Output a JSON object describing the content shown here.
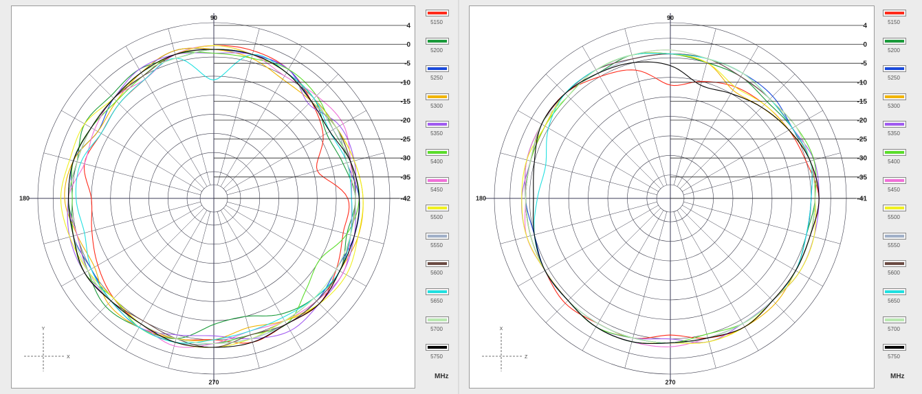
{
  "chart_data": [
    {
      "type": "polar-line",
      "angle_labels": [
        "90",
        "180",
        "270"
      ],
      "radial_labels": [
        {
          "value": 4,
          "label": "4"
        },
        {
          "value": 0,
          "label": "0"
        },
        {
          "value": -5,
          "label": "-5"
        },
        {
          "value": -10,
          "label": "-10"
        },
        {
          "value": -15,
          "label": "-15"
        },
        {
          "value": -20,
          "label": "-20"
        },
        {
          "value": -25,
          "label": "-25"
        },
        {
          "value": -30,
          "label": "-30"
        },
        {
          "value": -35,
          "label": "-35"
        },
        {
          "value": -42,
          "label": "-42"
        }
      ],
      "rlim": [
        -42,
        4
      ],
      "axis_indicator": {
        "vertical": "Y",
        "horizontal": "X"
      },
      "unit": "MHz",
      "series": [
        {
          "name": "5150",
          "color": "#ff2a1a",
          "values": [
            -7,
            -14,
            -9,
            -6,
            -3,
            -2,
            -2,
            -3,
            -6,
            -7,
            -8,
            -7,
            -10,
            -9,
            -7,
            -5,
            -4,
            -4,
            -5,
            -3,
            -4,
            -3,
            -5,
            -7
          ]
        },
        {
          "name": "5200",
          "color": "#1a9a3a",
          "values": [
            -5,
            -7,
            -8,
            -5,
            -4,
            -3,
            -3,
            -4,
            -3,
            -4,
            -3,
            -5,
            -4,
            -5,
            -4,
            -2,
            -3,
            -4,
            -9,
            -10,
            -7,
            -5,
            -4,
            -6
          ]
        },
        {
          "name": "5250",
          "color": "#1a4adb",
          "values": [
            -4,
            -6,
            -5,
            -6,
            -3,
            -3,
            -3,
            -2,
            -4,
            -5,
            -7,
            -4,
            -5,
            -4,
            -5,
            -4,
            -3,
            -3,
            -4,
            -5,
            -4,
            -4,
            -5,
            -4
          ]
        },
        {
          "name": "5300",
          "color": "#f0b400",
          "values": [
            -3,
            -4,
            -5,
            -6,
            -6,
            -4,
            -3,
            -2,
            -4,
            -6,
            -7,
            -4,
            -3,
            -5,
            -6,
            -3,
            -3,
            -4,
            -5,
            -7,
            -5,
            -3,
            -4,
            -3
          ]
        },
        {
          "name": "5350",
          "color": "#a05af0",
          "values": [
            -5,
            -4,
            -4,
            -7,
            -3,
            -3,
            -4,
            -3,
            -3,
            -5,
            -5,
            -5,
            -4,
            -3,
            -3,
            -4,
            -3,
            -5,
            -6,
            -4,
            -2,
            -3,
            -3,
            -4
          ]
        },
        {
          "name": "5400",
          "color": "#5add2a",
          "values": [
            -4,
            -5,
            -6,
            -4,
            -3,
            -4,
            -4,
            -3,
            -5,
            -6,
            -5,
            -4,
            -5,
            -4,
            -3,
            -5,
            -3,
            -3,
            -4,
            -5,
            -4,
            -8,
            -10,
            -6
          ]
        },
        {
          "name": "5450",
          "color": "#f070d8",
          "values": [
            -6,
            -5,
            -3,
            -4,
            -5,
            -3,
            -2,
            -3,
            -6,
            -5,
            -6,
            -7,
            -4,
            -5,
            -4,
            -4,
            -4,
            -2,
            -4,
            -6,
            -5,
            -4,
            -3,
            -5
          ]
        },
        {
          "name": "5500",
          "color": "#f0f020",
          "values": [
            -3,
            -4,
            -5,
            -5,
            -4,
            -3,
            -2,
            -3,
            -4,
            -5,
            -3,
            -3,
            -2,
            -3,
            -4,
            -5,
            -4,
            -3,
            -3,
            -4,
            -5,
            -3,
            -2,
            -3
          ]
        },
        {
          "name": "5550",
          "color": "#a0b0c8",
          "values": [
            -5,
            -5,
            -6,
            -5,
            -4,
            -3,
            -3,
            -4,
            -4,
            -5,
            -5,
            -4,
            -4,
            -4,
            -3,
            -4,
            -4,
            -3,
            -4,
            -4,
            -4,
            -4,
            -4,
            -5
          ]
        },
        {
          "name": "5600",
          "color": "#6a4a42",
          "values": [
            -5,
            -5,
            -5,
            -6,
            -4,
            -3,
            -3,
            -3,
            -5,
            -5,
            -5,
            -5,
            -4,
            -4,
            -3,
            -4,
            -5,
            -4,
            -3,
            -5,
            -4,
            -4,
            -4,
            -5
          ]
        },
        {
          "name": "5650",
          "color": "#20e0e0",
          "values": [
            -6,
            -6,
            -7,
            -5,
            -4,
            -3,
            -11,
            -4,
            -6,
            -7,
            -8,
            -6,
            -6,
            -7,
            -5,
            -4,
            -3,
            -3,
            -5,
            -6,
            -6,
            -5,
            -4,
            -5
          ]
        },
        {
          "name": "5700",
          "color": "#b8e8b0",
          "values": [
            -5,
            -6,
            -5,
            -6,
            -4,
            -3,
            -3,
            -4,
            -4,
            -5,
            -5,
            -5,
            -4,
            -4,
            -4,
            -4,
            -4,
            -4,
            -4,
            -4,
            -5,
            -5,
            -5,
            -5
          ]
        },
        {
          "name": "5750",
          "color": "#000000",
          "values": [
            -4,
            -5,
            -7,
            -6,
            -4,
            -3,
            -3,
            -3,
            -4,
            -5,
            -5,
            -4,
            -4,
            -4,
            -3,
            -4,
            -4,
            -3,
            -3,
            -3,
            -4,
            -3,
            -4,
            -4
          ]
        }
      ]
    },
    {
      "type": "polar-line",
      "angle_labels": [
        "90",
        "180",
        "270"
      ],
      "radial_labels": [
        {
          "value": 4,
          "label": "4"
        },
        {
          "value": 0,
          "label": "0"
        },
        {
          "value": -5,
          "label": "-5"
        },
        {
          "value": -10,
          "label": "-10"
        },
        {
          "value": -15,
          "label": "-15"
        },
        {
          "value": -20,
          "label": "-20"
        },
        {
          "value": -25,
          "label": "-25"
        },
        {
          "value": -30,
          "label": "-30"
        },
        {
          "value": -35,
          "label": "-35"
        },
        {
          "value": -41,
          "label": "-41"
        }
      ],
      "rlim": [
        -41,
        4
      ],
      "axis_indicator": {
        "vertical": "X",
        "horizontal": "Z"
      },
      "unit": "MHz",
      "series": [
        {
          "name": "5150",
          "color": "#ff2a1a",
          "values": [
            -3,
            -5,
            -6,
            -7,
            -8,
            -10,
            -12,
            -7,
            -5,
            -3,
            -3,
            -4,
            -4,
            -4,
            -4,
            -3,
            -4,
            -4,
            -6,
            -4,
            -3,
            -4,
            -4,
            -4
          ]
        },
        {
          "name": "5200",
          "color": "#1a9a3a",
          "values": [
            -4,
            -4,
            -5,
            -6,
            -5,
            -5,
            -4,
            -3,
            -4,
            -3,
            -3,
            -3,
            -4,
            -4,
            -4,
            -4,
            -4,
            -4,
            -4,
            -4,
            -4,
            -4,
            -4,
            -5
          ]
        },
        {
          "name": "5250",
          "color": "#1a4adb",
          "values": [
            -5,
            -4,
            -5,
            -4,
            -4,
            -4,
            -4,
            -3,
            -3,
            -3,
            -4,
            -4,
            -4,
            -5,
            -4,
            -4,
            -4,
            -4,
            -4,
            -4,
            -4,
            -4,
            -4,
            -5
          ]
        },
        {
          "name": "5300",
          "color": "#f0b400",
          "values": [
            -4,
            -4,
            -6,
            -8,
            -9,
            -5,
            -4,
            -3,
            -3,
            -3,
            -4,
            -4,
            -4,
            -4,
            -4,
            -4,
            -3,
            -3,
            -4,
            -3,
            -3,
            -3,
            -4,
            -4
          ]
        },
        {
          "name": "5350",
          "color": "#a05af0",
          "values": [
            -3,
            -3,
            -5,
            -5,
            -5,
            -4,
            -4,
            -4,
            -3,
            -3,
            -3,
            -4,
            -3,
            -3,
            -4,
            -4,
            -3,
            -4,
            -5,
            -3,
            -4,
            -4,
            -3,
            -3
          ]
        },
        {
          "name": "5400",
          "color": "#5add2a",
          "values": [
            -4,
            -3,
            -4,
            -5,
            -4,
            -4,
            -4,
            -3,
            -3,
            -4,
            -4,
            -4,
            -4,
            -4,
            -4,
            -4,
            -3,
            -4,
            -4,
            -5,
            -4,
            -4,
            -4,
            -4
          ]
        },
        {
          "name": "5450",
          "color": "#f070d8",
          "values": [
            -3,
            -4,
            -4,
            -5,
            -4,
            -4,
            -3,
            -3,
            -3,
            -3,
            -3,
            -3,
            -4,
            -3,
            -4,
            -4,
            -3,
            -3,
            -3,
            -4,
            -4,
            -4,
            -4,
            -4
          ]
        },
        {
          "name": "5500",
          "color": "#f0f020",
          "values": [
            -4,
            -4,
            -6,
            -7,
            -8,
            -5,
            -4,
            -3,
            -3,
            -3,
            -4,
            -3,
            -3,
            -3,
            -4,
            -4,
            -3,
            -3,
            -4,
            -3,
            -3,
            -4,
            -3,
            -3
          ]
        },
        {
          "name": "5550",
          "color": "#a0b0c8",
          "values": [
            -4,
            -4,
            -5,
            -5,
            -5,
            -4,
            -4,
            -4,
            -4,
            -3,
            -3,
            -4,
            -4,
            -4,
            -4,
            -4,
            -4,
            -4,
            -4,
            -4,
            -4,
            -4,
            -4,
            -4
          ]
        },
        {
          "name": "5600",
          "color": "#6a4a42",
          "values": [
            -4,
            -4,
            -5,
            -5,
            -5,
            -4,
            -4,
            -4,
            -3,
            -3,
            -3,
            -4,
            -4,
            -4,
            -4,
            -4,
            -3,
            -3,
            -4,
            -4,
            -4,
            -4,
            -4,
            -4
          ]
        },
        {
          "name": "5650",
          "color": "#20e0e0",
          "values": [
            -5,
            -4,
            -5,
            -5,
            -4,
            -4,
            -4,
            -3,
            -3,
            -3,
            -5,
            -8,
            -7,
            -5,
            -4,
            -4,
            -3,
            -3,
            -4,
            -4,
            -4,
            -4,
            -4,
            -5
          ]
        },
        {
          "name": "5700",
          "color": "#b8e8b0",
          "values": [
            -4,
            -4,
            -4,
            -5,
            -4,
            -4,
            -3,
            -3,
            -3,
            -4,
            -3,
            -4,
            -4,
            -4,
            -4,
            -4,
            -4,
            -4,
            -4,
            -4,
            -4,
            -4,
            -4,
            -4
          ]
        },
        {
          "name": "5750",
          "color": "#000000",
          "values": [
            -3,
            -4,
            -6,
            -8,
            -10,
            -11,
            -7,
            -5,
            -4,
            -3,
            -3,
            -5,
            -6,
            -5,
            -4,
            -4,
            -3,
            -3,
            -4,
            -4,
            -3,
            -4,
            -4,
            -4
          ]
        }
      ]
    }
  ]
}
